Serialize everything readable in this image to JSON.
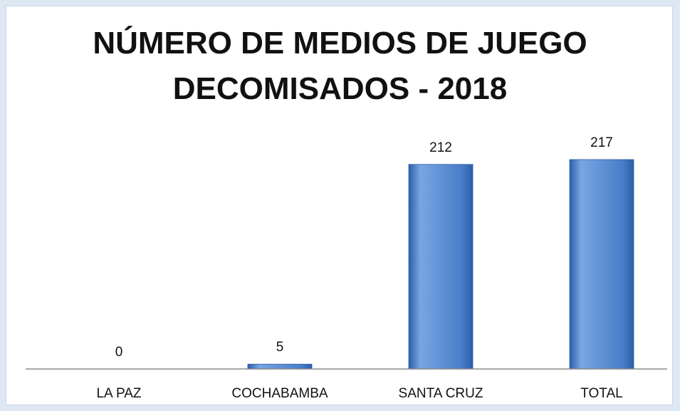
{
  "chart_data": {
    "type": "bar",
    "title_lines": [
      "NÚMERO DE MEDIOS DE JUEGO",
      "DECOMISADOS - 2018"
    ],
    "categories": [
      "LA PAZ",
      "COCHABAMBA",
      "SANTA CRUZ",
      "TOTAL"
    ],
    "values": [
      0,
      5,
      212,
      217
    ],
    "data_labels": [
      "0",
      "5",
      "212",
      "217"
    ],
    "xlabel": "",
    "ylabel": "",
    "ylim": [
      0,
      217
    ],
    "grid": false,
    "legend": "none",
    "bar_color": "#4a7ec9",
    "bar_color_light": "#79a5e3",
    "bar_color_dark": "#2c5ea8",
    "axis_color": "#8c8c8c"
  }
}
